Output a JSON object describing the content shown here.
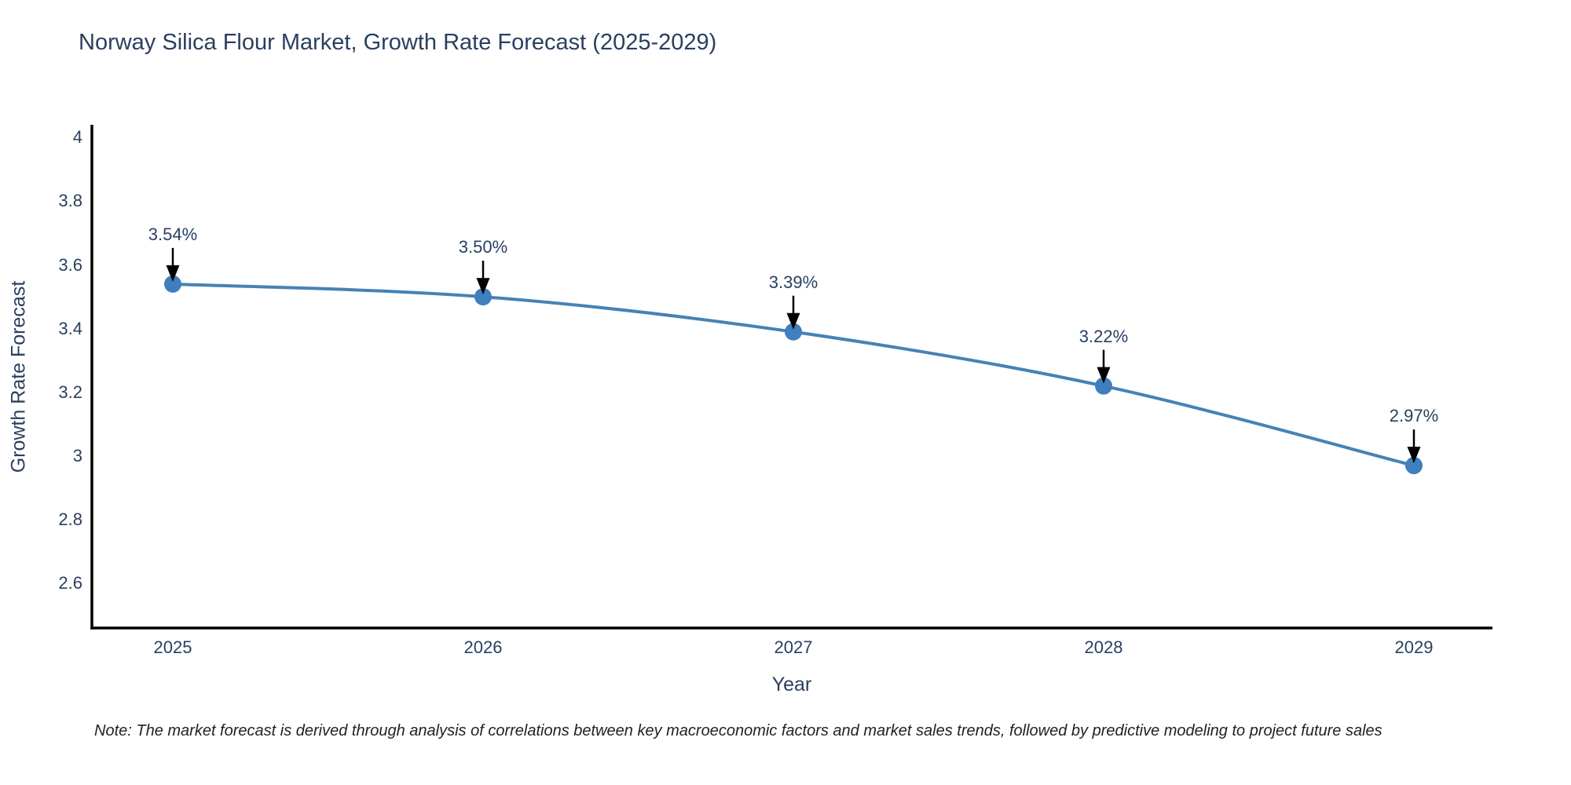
{
  "title": "Norway Silica Flour Market, Growth Rate Forecast (2025-2029)",
  "footnote": "Note: The market forecast is derived through analysis of correlations between key macroeconomic factors and market sales trends, followed by predictive modeling to project future sales",
  "chart_data": {
    "type": "line",
    "title": "Norway Silica Flour Market, Growth Rate Forecast (2025-2029)",
    "xlabel": "Year",
    "ylabel": "Growth Rate Forecast",
    "categories": [
      2025,
      2026,
      2027,
      2028,
      2029
    ],
    "series": [
      {
        "name": "Growth Rate Forecast",
        "values": [
          3.54,
          3.5,
          3.39,
          3.22,
          2.97
        ]
      }
    ],
    "point_labels": [
      "3.54%",
      "3.50%",
      "3.39%",
      "3.22%",
      "2.97%"
    ],
    "yticks": [
      2.6,
      2.8,
      3,
      3.2,
      3.4,
      3.6,
      3.8,
      4
    ],
    "ylim": [
      2.46,
      4.04
    ],
    "grid": false,
    "legend": false,
    "line_shape": "spline",
    "colors": {
      "line": "#4682b4",
      "marker": "#3f7fbf",
      "axis": "#000000",
      "arrow": "#000000",
      "text": "#2a3f5f"
    }
  }
}
